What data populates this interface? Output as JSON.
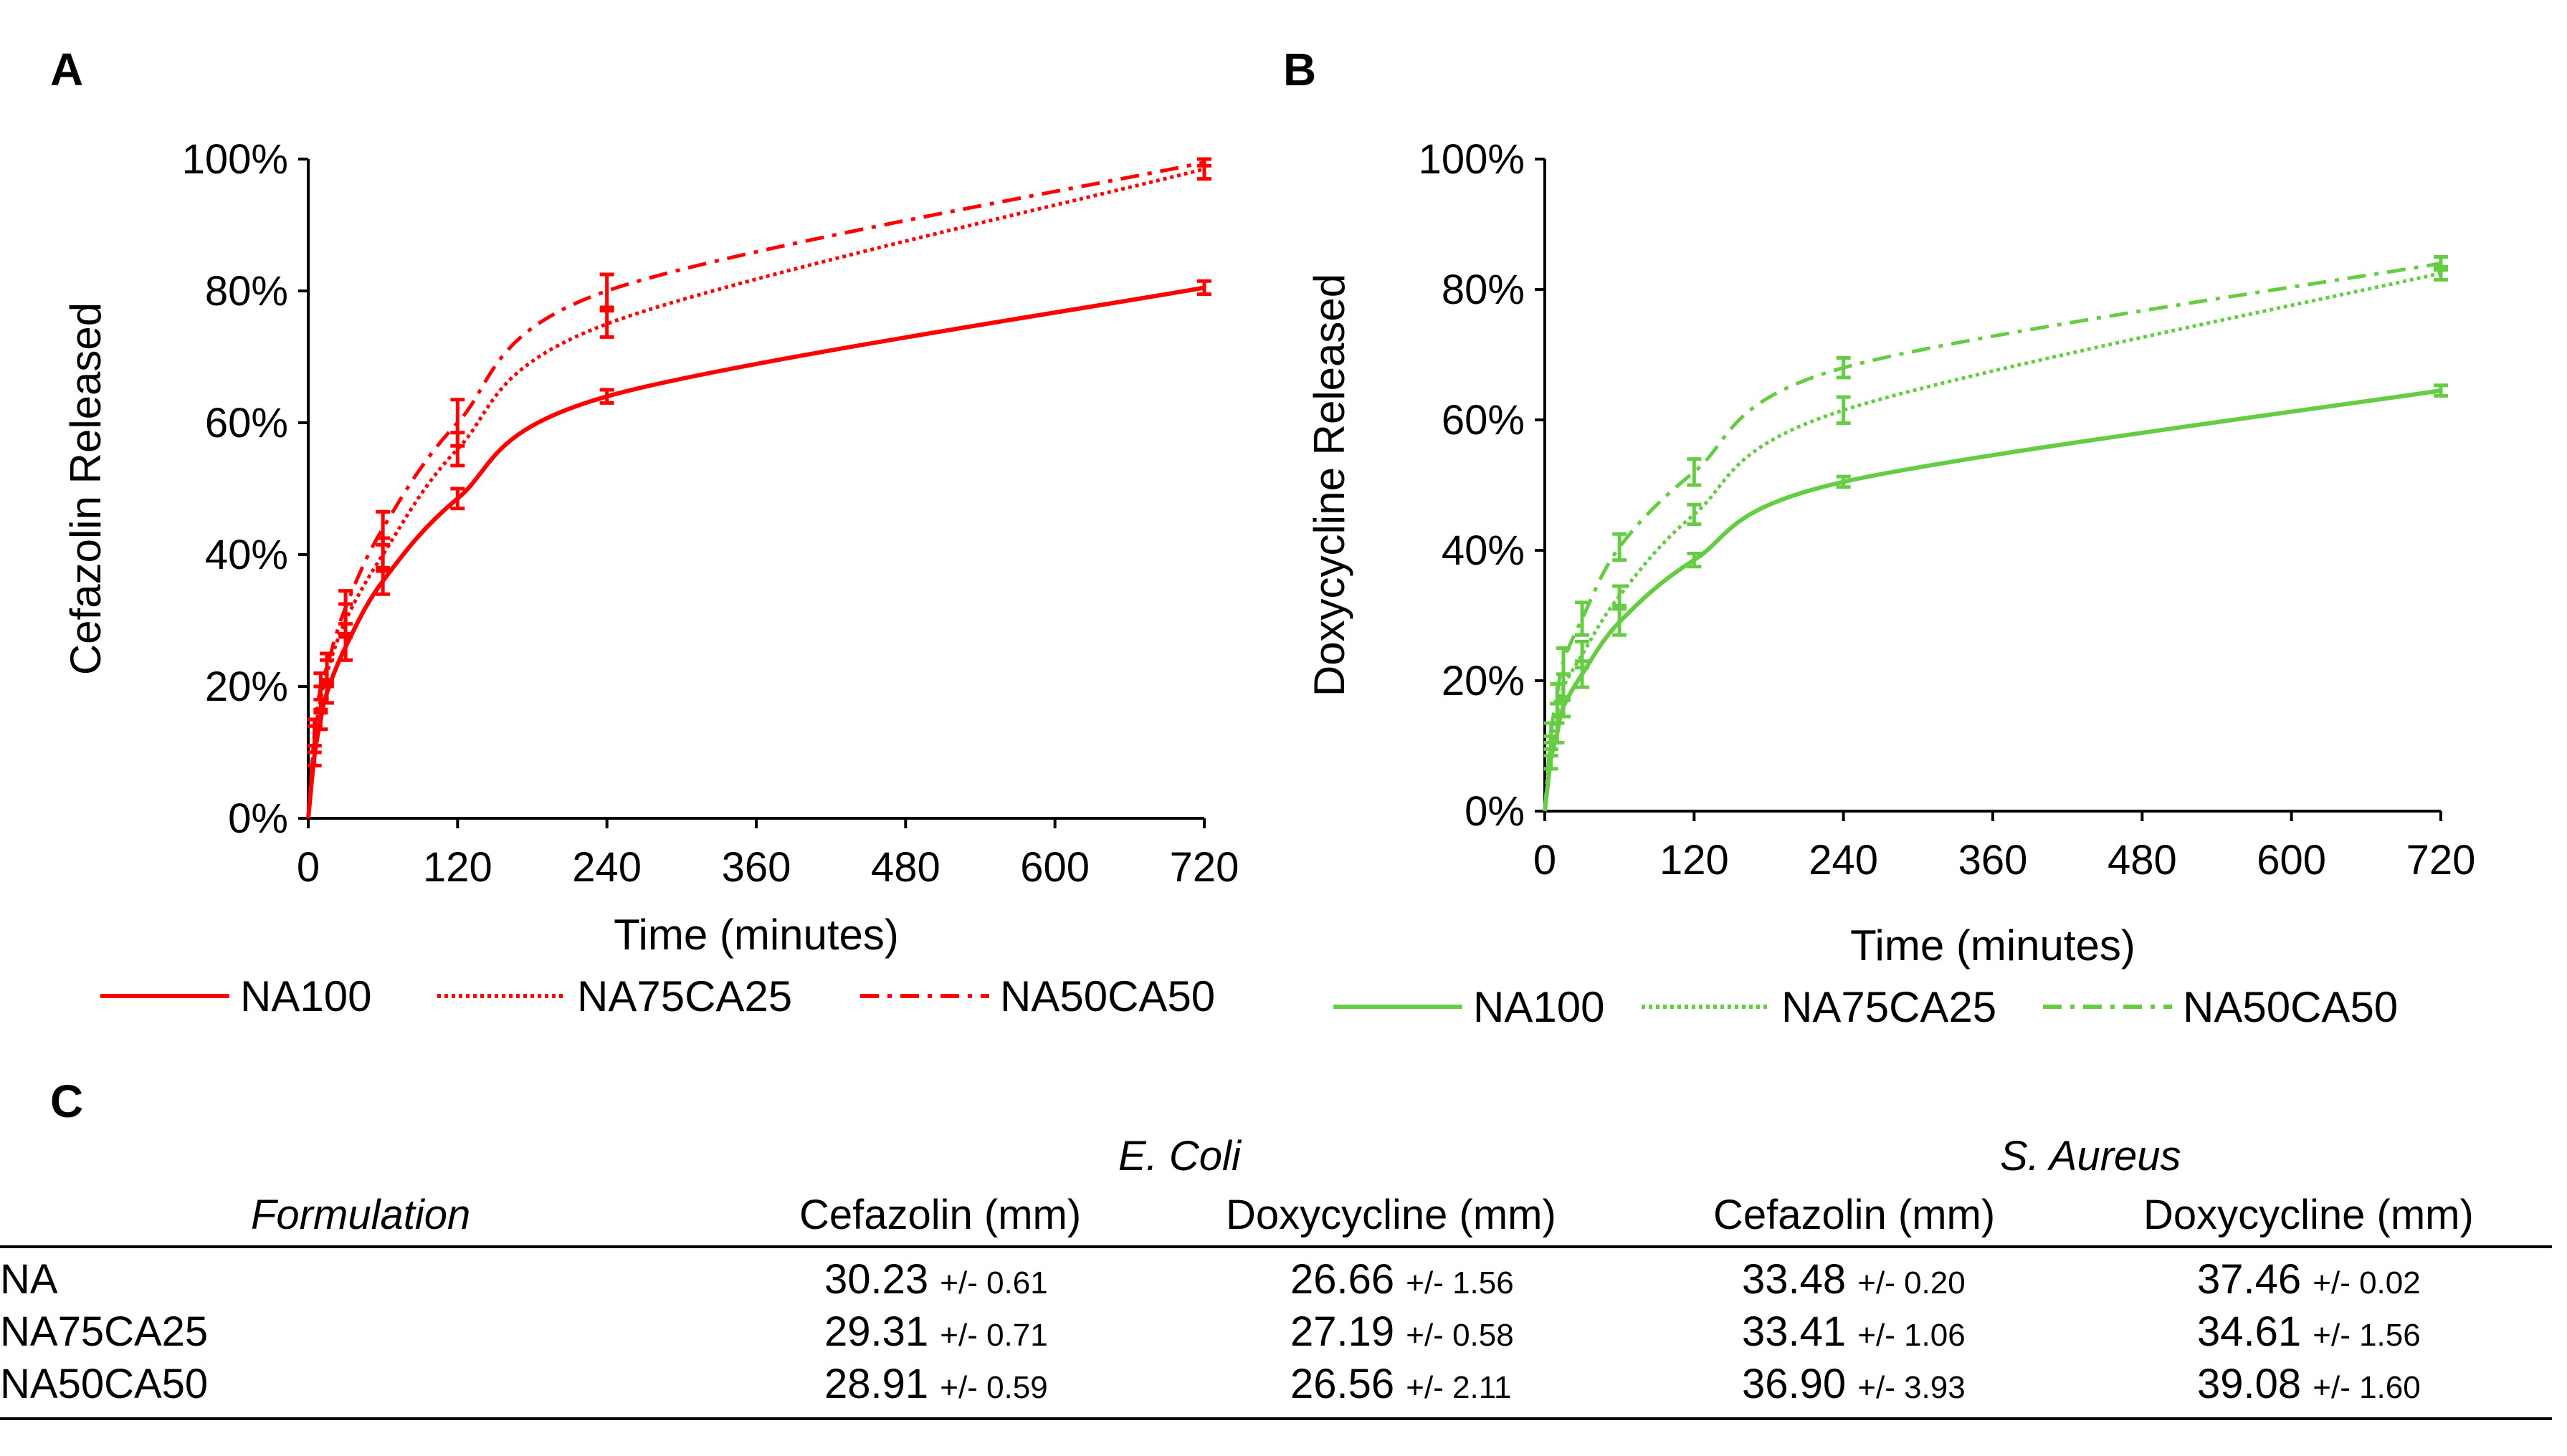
{
  "panels": {
    "a": "A",
    "b": "B",
    "c": "C"
  },
  "chart_data": [
    {
      "id": "A",
      "type": "line",
      "title": "",
      "xlabel": "Time (minutes)",
      "ylabel": "Cefazolin Released",
      "xlim": [
        0,
        720
      ],
      "ylim": [
        0,
        100
      ],
      "xticks": [
        "0",
        "120",
        "240",
        "360",
        "480",
        "600",
        "720"
      ],
      "yticks": [
        "0%",
        "20%",
        "40%",
        "60%",
        "80%",
        "100%"
      ],
      "color": "#ff0000",
      "grid": false,
      "legend_position": "bottom",
      "series": [
        {
          "name": "NA100",
          "style": "solid",
          "x": [
            0,
            5,
            10,
            15,
            30,
            60,
            120,
            240,
            720
          ],
          "y": [
            0,
            9.5,
            15,
            19,
            26,
            36,
            48.5,
            64,
            80.5
          ],
          "err": [
            0,
            1.5,
            1.5,
            1.5,
            2,
            2,
            1.5,
            1,
            1
          ]
        },
        {
          "name": "NA75CA25",
          "style": "dotted",
          "x": [
            0,
            5,
            10,
            15,
            30,
            60,
            120,
            240,
            720
          ],
          "y": [
            0,
            12,
            18,
            22,
            30,
            40,
            56,
            75,
            98.5
          ],
          "err": [
            0,
            2,
            2,
            2,
            2.5,
            2.5,
            2.5,
            2,
            1.5
          ]
        },
        {
          "name": "NA50CA50",
          "style": "dashdot",
          "x": [
            0,
            5,
            10,
            15,
            30,
            60,
            120,
            240,
            720
          ],
          "y": [
            0,
            13,
            20,
            23,
            32,
            44,
            60,
            80,
            99.5
          ],
          "err": [
            0,
            2,
            2,
            2,
            2.5,
            2.5,
            3.5,
            2.5,
            0.5
          ]
        }
      ]
    },
    {
      "id": "B",
      "type": "line",
      "title": "",
      "xlabel": "Time (minutes)",
      "ylabel": "Doxycycline Released",
      "xlim": [
        0,
        720
      ],
      "ylim": [
        0,
        100
      ],
      "xticks": [
        "0",
        "120",
        "240",
        "360",
        "480",
        "600",
        "720"
      ],
      "yticks": [
        "0%",
        "20%",
        "40%",
        "60%",
        "80%",
        "100%"
      ],
      "color": "#66cc44",
      "grid": false,
      "legend_position": "bottom",
      "series": [
        {
          "name": "NA100",
          "style": "solid",
          "x": [
            0,
            5,
            10,
            15,
            30,
            60,
            120,
            240,
            720
          ],
          "y": [
            0,
            8,
            12,
            16,
            21,
            29,
            38.5,
            50.5,
            64.5
          ],
          "err": [
            0,
            1.5,
            1.5,
            1.5,
            2,
            2,
            1,
            0.8,
            0.8
          ]
        },
        {
          "name": "NA75CA25",
          "style": "dotted",
          "x": [
            0,
            5,
            10,
            15,
            30,
            60,
            120,
            240,
            720
          ],
          "y": [
            0,
            10,
            15,
            19,
            24,
            33,
            45.5,
            61.5,
            82.5
          ],
          "err": [
            0,
            1.5,
            1.5,
            2,
            2,
            1.5,
            1.5,
            2,
            1
          ]
        },
        {
          "name": "NA50CA50",
          "style": "dashdot",
          "x": [
            0,
            5,
            10,
            15,
            30,
            60,
            120,
            240,
            720
          ],
          "y": [
            0,
            12,
            18,
            23,
            29.5,
            40.5,
            52,
            68,
            84
          ],
          "err": [
            0,
            1.5,
            1.5,
            2,
            2.5,
            2,
            2,
            1.5,
            1
          ]
        }
      ]
    }
  ],
  "table": {
    "groups": [
      "E. Coli",
      "S. Aureus"
    ],
    "columns": [
      "Formulation",
      "Cefazolin (mm)",
      "Doxycycline (mm)",
      "Cefazolin (mm)",
      "Doxycycline (mm)"
    ],
    "rows": [
      {
        "name": "NA",
        "cells": [
          {
            "v": "30.23",
            "e": "+/- 0.61"
          },
          {
            "v": "26.66",
            "e": "+/- 1.56"
          },
          {
            "v": "33.48",
            "e": "+/- 0.20"
          },
          {
            "v": "37.46",
            "e": "+/- 0.02"
          }
        ]
      },
      {
        "name": "NA75CA25",
        "cells": [
          {
            "v": "29.31",
            "e": "+/- 0.71"
          },
          {
            "v": "27.19",
            "e": "+/- 0.58"
          },
          {
            "v": "33.41",
            "e": "+/- 1.06"
          },
          {
            "v": "34.61",
            "e": "+/- 1.56"
          }
        ]
      },
      {
        "name": "NA50CA50",
        "cells": [
          {
            "v": "28.91",
            "e": "+/- 0.59"
          },
          {
            "v": "26.56",
            "e": "+/- 2.11"
          },
          {
            "v": "36.90",
            "e": "+/- 3.93"
          },
          {
            "v": "39.08",
            "e": "+/- 1.60"
          }
        ]
      }
    ]
  }
}
